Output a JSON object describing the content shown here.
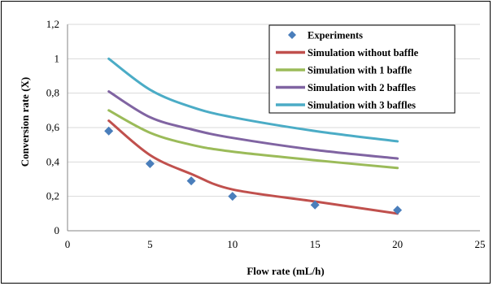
{
  "chart_data": {
    "type": "line",
    "xlabel": "Flow rate (mL/h)",
    "ylabel": "Conversion rate (X)",
    "xlim": [
      0,
      25
    ],
    "ylim": [
      0,
      1.2
    ],
    "x_ticks": [
      0,
      5,
      10,
      15,
      20,
      25
    ],
    "x_tick_labels": [
      "0",
      "5",
      "10",
      "15",
      "20",
      "25"
    ],
    "y_ticks": [
      0,
      0.2,
      0.4,
      0.6,
      0.8,
      1,
      1.2
    ],
    "y_tick_labels": [
      "0",
      "0,2",
      "0,4",
      "0,6",
      "0,8",
      "1",
      "1,2"
    ],
    "grid": "horizontal",
    "legend_position": "top-right",
    "series": [
      {
        "name": "Experiments",
        "kind": "scatter",
        "marker": "diamond",
        "color": "#4a7ebb",
        "points": [
          [
            2.5,
            0.58
          ],
          [
            5,
            0.39
          ],
          [
            7.5,
            0.29
          ],
          [
            10,
            0.2
          ],
          [
            15,
            0.15
          ],
          [
            20,
            0.12
          ]
        ]
      },
      {
        "name": "Simulation without baffle",
        "kind": "line",
        "color": "#c0504d",
        "points": [
          [
            2.5,
            0.64
          ],
          [
            5,
            0.44
          ],
          [
            7.5,
            0.33
          ],
          [
            10,
            0.24
          ],
          [
            15,
            0.17
          ],
          [
            20,
            0.1
          ]
        ]
      },
      {
        "name": "Simulation with 1 baffle",
        "kind": "line",
        "color": "#9bbb59",
        "points": [
          [
            2.5,
            0.7
          ],
          [
            5,
            0.57
          ],
          [
            7.5,
            0.5
          ],
          [
            10,
            0.46
          ],
          [
            15,
            0.41
          ],
          [
            20,
            0.365
          ]
        ]
      },
      {
        "name": "Simulation with 2 baffles",
        "kind": "line",
        "color": "#8064a2",
        "points": [
          [
            2.5,
            0.81
          ],
          [
            5,
            0.66
          ],
          [
            7.5,
            0.59
          ],
          [
            10,
            0.54
          ],
          [
            15,
            0.47
          ],
          [
            20,
            0.42
          ]
        ]
      },
      {
        "name": "Simulation with 3 baffles",
        "kind": "line",
        "color": "#4bacc6",
        "points": [
          [
            2.5,
            1.0
          ],
          [
            5,
            0.82
          ],
          [
            7.5,
            0.72
          ],
          [
            10,
            0.66
          ],
          [
            15,
            0.58
          ],
          [
            20,
            0.52
          ]
        ]
      }
    ]
  }
}
